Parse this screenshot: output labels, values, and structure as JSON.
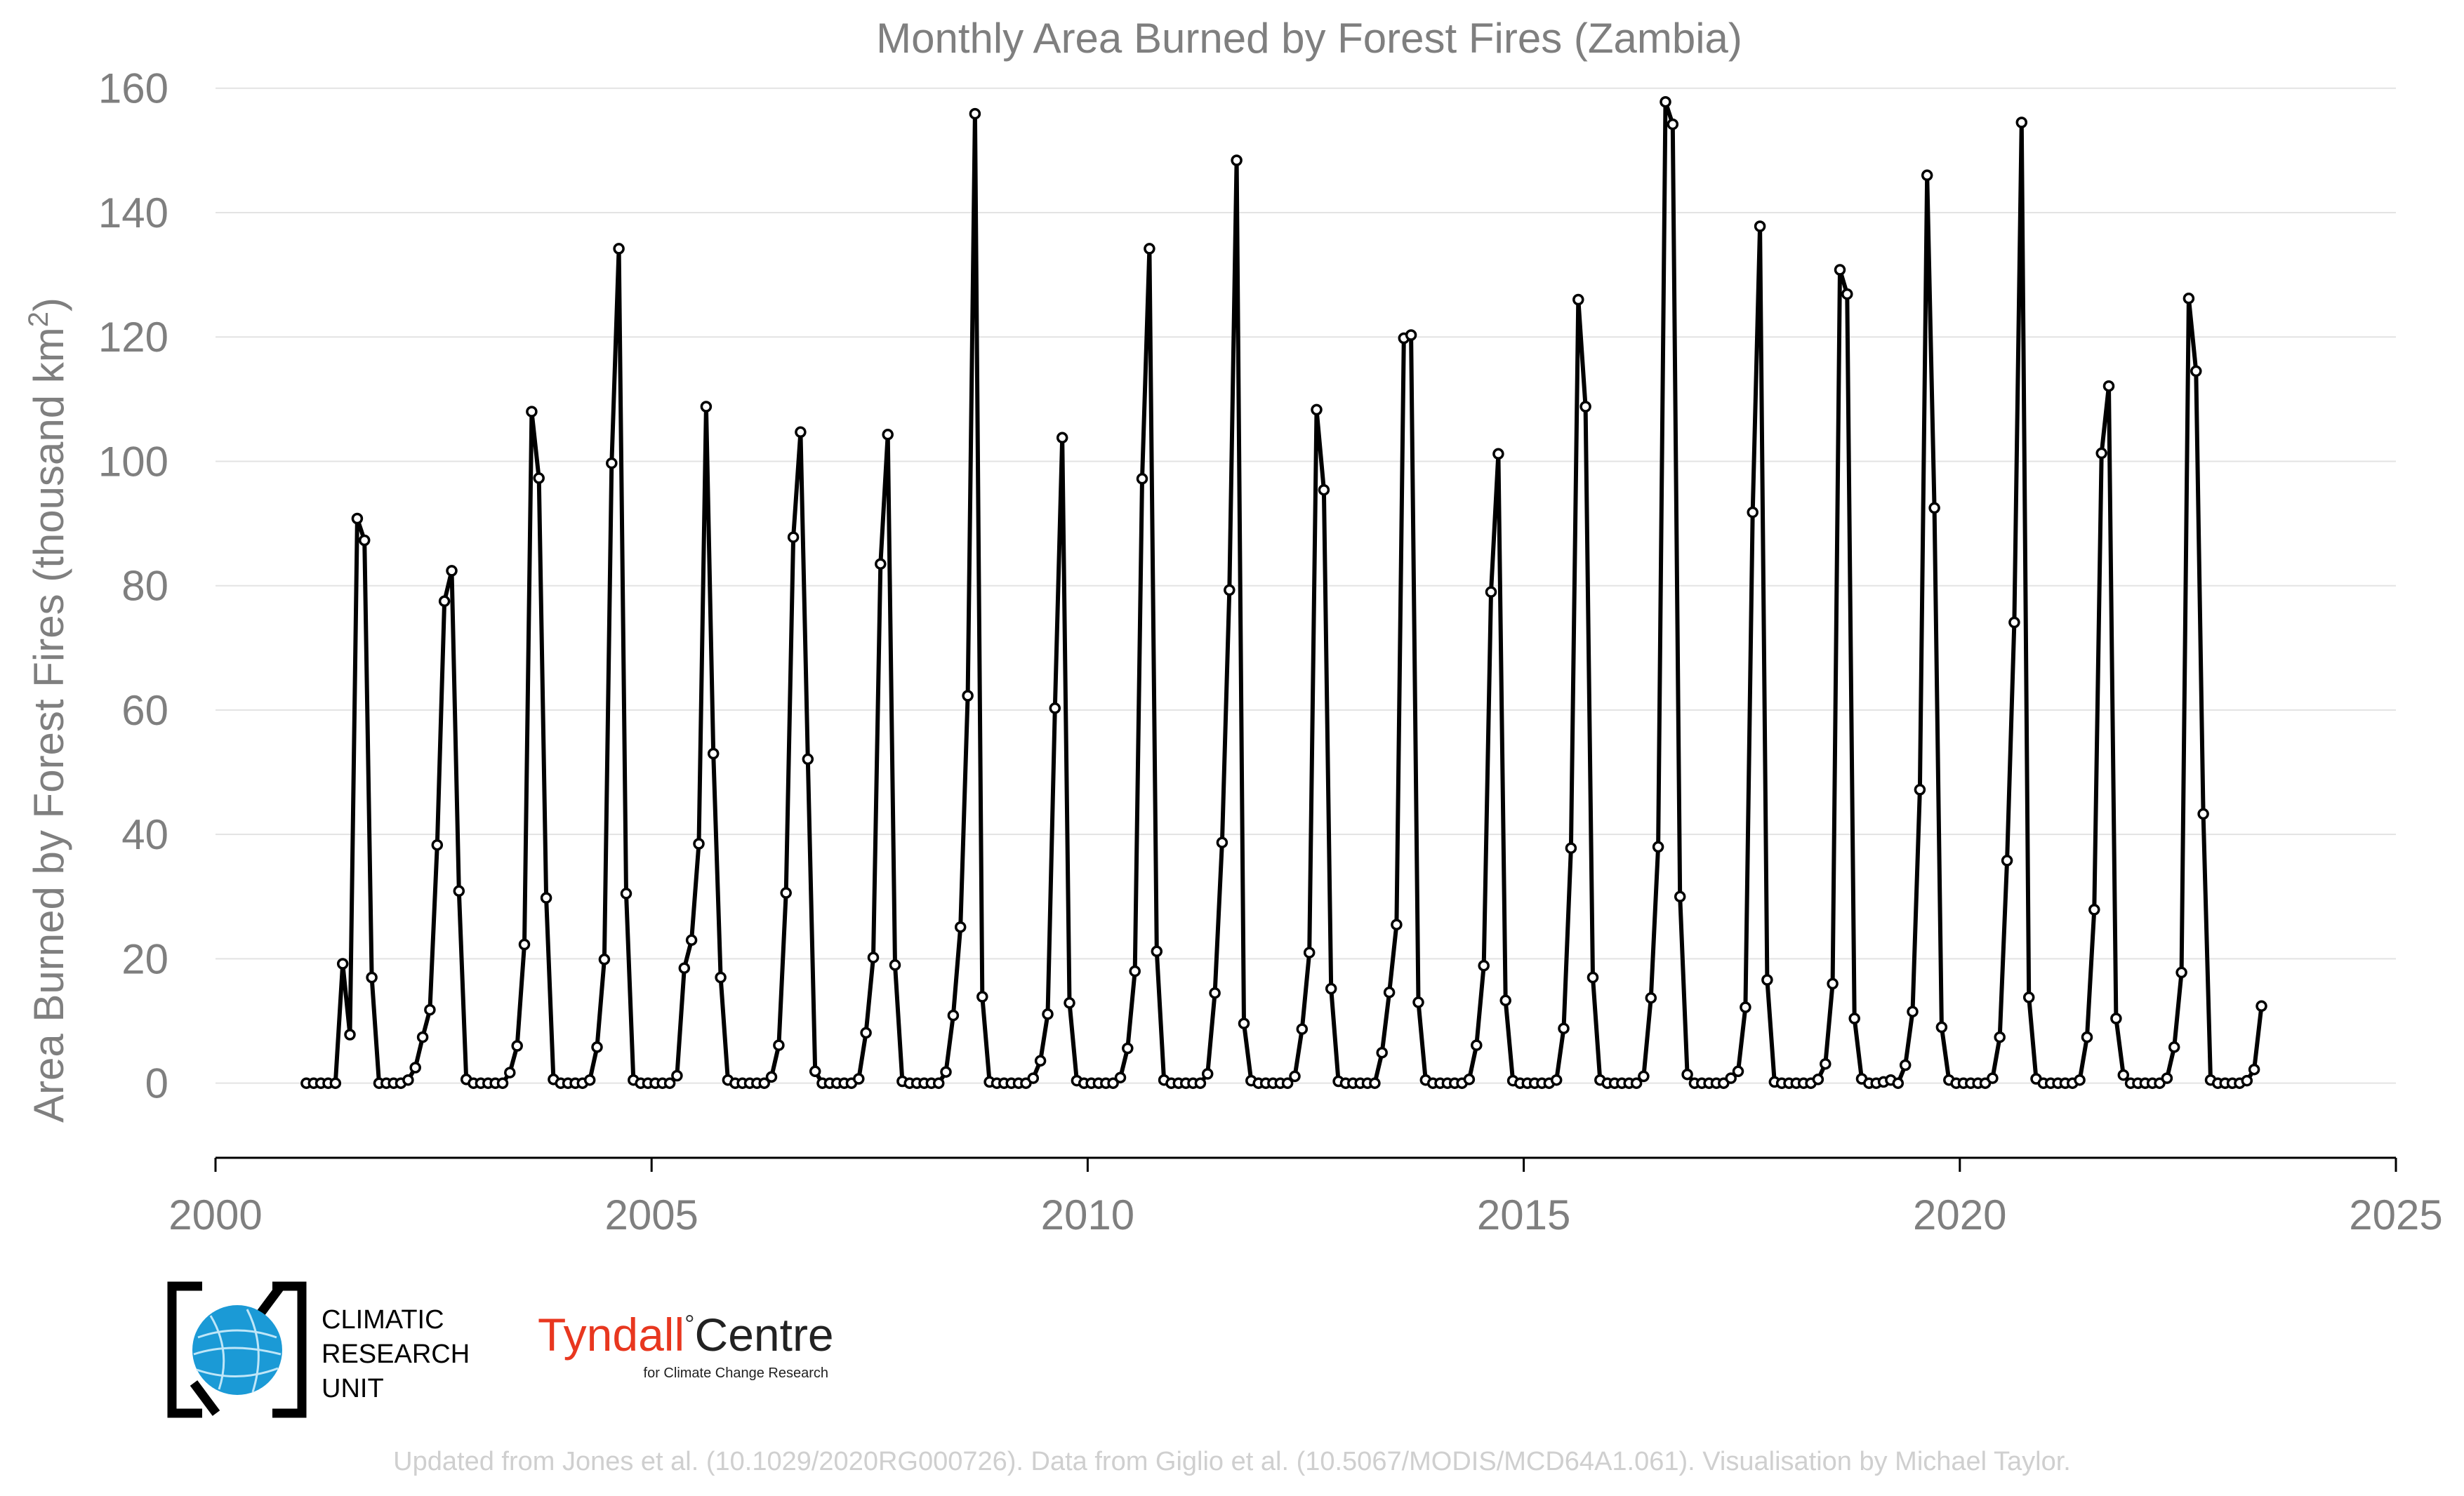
{
  "chart_data": {
    "type": "line",
    "title": "Monthly Area Burned by Forest Fires (Zambia)",
    "ylabel": "Area Burned by Forest Fires (thousand km²)",
    "ylabel_main": "Area Burned by Forest Fires (thousand km",
    "ylabel_sup": "2",
    "ylabel_end": ")",
    "xlabel": "",
    "xlim": [
      2000,
      2025
    ],
    "ylim": [
      -12,
      162
    ],
    "x_ticks": [
      "2000",
      "2005",
      "2010",
      "2015",
      "2020",
      "2025"
    ],
    "y_ticks": [
      "0",
      "20",
      "40",
      "60",
      "80",
      "100",
      "120",
      "140",
      "160"
    ],
    "grid": "horizontal",
    "start": "2001-01",
    "end": "2023-05",
    "series": [
      {
        "color": "#000000",
        "values": [
          0,
          0,
          0,
          0,
          0,
          19.2,
          7.8,
          90.8,
          87.3,
          17,
          0,
          0,
          0,
          0,
          0.5,
          2.5,
          7.4,
          11.8,
          38.3,
          77.5,
          82.4,
          30.9,
          0.6,
          0,
          0,
          0,
          0,
          0,
          1.7,
          6,
          22.3,
          108,
          97.3,
          29.8,
          0.6,
          0,
          0,
          0,
          0,
          0.5,
          5.8,
          19.9,
          99.7,
          134.2,
          30.5,
          0.5,
          0,
          0,
          0,
          0,
          0,
          1.2,
          18.5,
          23,
          38.5,
          108.8,
          53,
          17,
          0.5,
          0,
          0,
          0,
          0,
          0,
          1,
          6.1,
          30.6,
          87.8,
          104.7,
          52.1,
          1.9,
          0,
          0,
          0,
          0,
          0,
          0.7,
          8.1,
          20.2,
          83.5,
          104.3,
          19,
          0.3,
          0,
          0,
          0,
          0,
          0,
          1.8,
          10.9,
          25.1,
          62.3,
          155.9,
          13.9,
          0.2,
          0,
          0,
          0,
          0,
          0,
          0.8,
          3.6,
          11.1,
          60.3,
          103.8,
          12.9,
          0.4,
          0,
          0,
          0,
          0,
          0,
          0.9,
          5.6,
          18,
          97.2,
          134.2,
          21.2,
          0.5,
          0,
          0,
          0,
          0,
          0,
          1.5,
          14.5,
          38.7,
          79.3,
          148.4,
          9.6,
          0.4,
          0,
          0,
          0,
          0,
          0,
          1.1,
          8.7,
          21,
          108.3,
          95.4,
          15.2,
          0.3,
          0,
          0,
          0,
          0,
          0,
          4.9,
          14.6,
          25.5,
          119.8,
          120.3,
          13,
          0.5,
          0,
          0,
          0,
          0,
          0,
          0.6,
          6.1,
          18.9,
          79,
          101.2,
          13.3,
          0.4,
          0,
          0,
          0,
          0,
          0,
          0.5,
          8.8,
          37.8,
          126,
          108.8,
          17,
          0.5,
          0,
          0,
          0,
          0,
          0,
          1.1,
          13.7,
          38,
          157.8,
          154.2,
          30,
          1.4,
          0,
          0,
          0,
          0,
          0,
          0.8,
          1.9,
          12.2,
          91.8,
          137.8,
          16.6,
          0.2,
          0,
          0,
          0,
          0,
          0,
          0.6,
          3.1,
          16,
          130.8,
          126.9,
          10.4,
          0.7,
          0,
          0,
          0.2,
          0.5,
          0,
          2.9,
          11.5,
          47.2,
          146,
          92.5,
          9,
          0.5,
          0,
          0,
          0,
          0,
          0,
          0.8,
          7.4,
          35.8,
          74.1,
          154.5,
          13.8,
          0.7,
          0,
          0,
          0,
          0,
          0,
          0.5,
          7.4,
          27.9,
          101.3,
          112.1,
          10.4,
          1.3,
          0,
          0,
          0,
          0,
          0,
          0.8,
          5.8,
          17.8,
          126.2,
          114.5,
          43.3,
          0.5,
          0,
          0,
          0,
          0,
          0.4,
          2.2,
          12.4
        ]
      }
    ]
  },
  "branding": {
    "cru": [
      "CLIMATIC",
      "RESEARCH",
      "UNIT"
    ],
    "tyndall_main": "Tyndall",
    "tyndall_degree": "°",
    "tyndall_centre": "Centre",
    "tyndall_sub": "for Climate Change Research",
    "tyndall_color": "#e8371f"
  },
  "source_note": "Updated from Jones et al. (10.1029/2020RG000726). Data from Giglio et al. (10.5067/MODIS/MCD64A1.061). Visualisation by Michael Taylor."
}
